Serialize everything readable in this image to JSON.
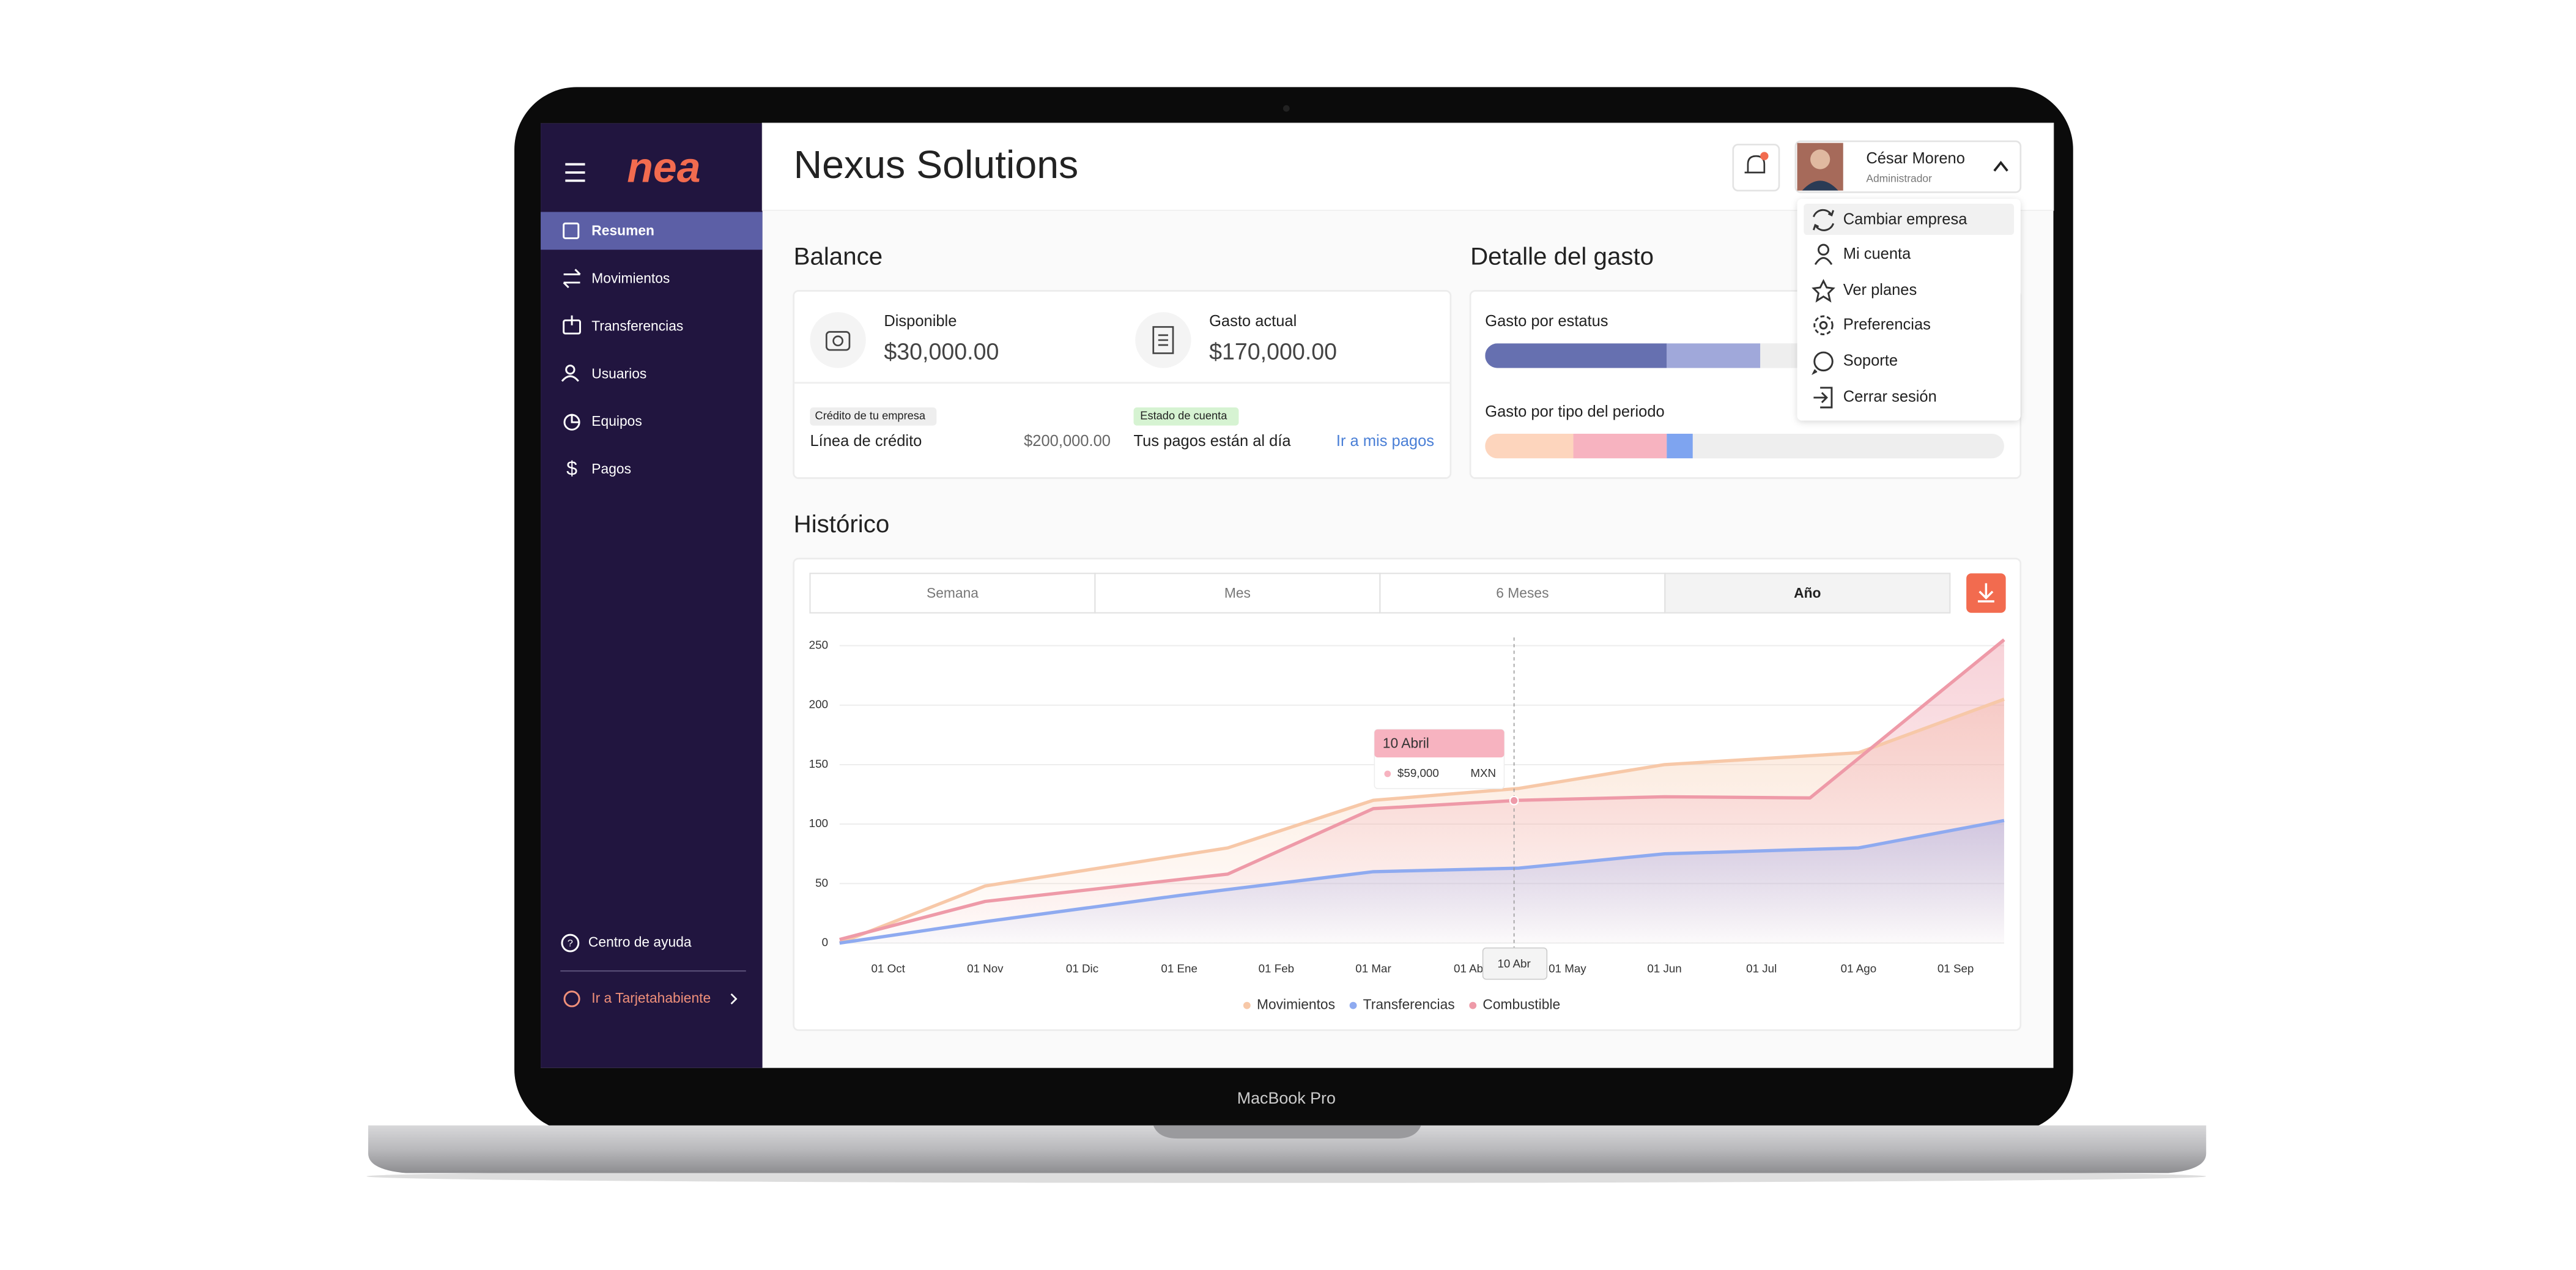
{
  "device": "MacBook Pro",
  "sidebar": {
    "logo": "nea",
    "menu": [
      "Resumen",
      "Movimientos",
      "Transferencias",
      "Usuarios",
      "Equipos",
      "Pagos"
    ],
    "help": "Centro de ayuda",
    "cardholder": "Ir a Tarjetahabiente"
  },
  "header": {
    "title": "Nexus Solutions",
    "user_name": "César Moreno",
    "user_role": "Administrador"
  },
  "user_menu": [
    "Cambiar empresa",
    "Mi cuenta",
    "Ver planes",
    "Preferencias",
    "Soporte",
    "Cerrar sesión"
  ],
  "balance": {
    "title": "Balance",
    "available_label": "Disponible",
    "available": "$30,000.00",
    "spent_label": "Gasto actual",
    "spent": "$170,000.00",
    "credit_badge": "Crédito de tu empresa",
    "credit_label": "Línea de crédito",
    "credit": "$200,000.00",
    "statement_badge": "Estado de cuenta",
    "statement_status": "Tus pagos están al día",
    "statement_link": "Ir a mis pagos"
  },
  "expense_detail": {
    "title": "Detalle del gasto",
    "xlim": [
      0,
      100
    ],
    "by_status": {
      "label": "Gasto por estatus",
      "segments": [
        {
          "color": "#6670b0",
          "value": 35
        },
        {
          "color": "#a0a8da",
          "value": 18
        }
      ]
    },
    "by_type": {
      "label": "Gasto por tipo del periodo",
      "segments": [
        {
          "color": "#fdd5bd",
          "value": 17
        },
        {
          "color": "#f7b3c0",
          "value": 18
        },
        {
          "color": "#7ea4f0",
          "value": 5
        }
      ]
    }
  },
  "history": {
    "title": "Histórico",
    "tabs": [
      "Semana",
      "Mes",
      "6 Meses",
      "Año"
    ],
    "active_tab": 3
  },
  "chart_data": {
    "type": "line",
    "xlim": [
      -0.5,
      11.5
    ],
    "xticks": [
      {
        "value": 0,
        "label": "01 Oct"
      },
      {
        "value": 1,
        "label": "01 Nov"
      },
      {
        "value": 2,
        "label": "01 Dic"
      },
      {
        "value": 3,
        "label": "01 Ene"
      },
      {
        "value": 4,
        "label": "01 Feb"
      },
      {
        "value": 5,
        "label": "01 Mar"
      },
      {
        "value": 6,
        "label": "01 Abr"
      },
      {
        "value": 7,
        "label": "01 May"
      },
      {
        "value": 8,
        "label": "01 Jun"
      },
      {
        "value": 9,
        "label": "01 Jul"
      },
      {
        "value": 10,
        "label": "01 Ago"
      },
      {
        "value": 11,
        "label": "01 Sep"
      }
    ],
    "ylim": [
      0,
      250
    ],
    "yticks": [
      0,
      50,
      100,
      150,
      200,
      250
    ],
    "grid": true,
    "series": [
      {
        "name": "Movimientos",
        "color": "#f7c8a8",
        "x": [
          -0.5,
          1,
          3.5,
          5,
          6.5,
          8,
          10,
          11.5
        ],
        "values": [
          0,
          48,
          80,
          120,
          130,
          150,
          160,
          205
        ]
      },
      {
        "name": "Transferencias",
        "color": "#8eaaf0",
        "x": [
          -0.5,
          1,
          3,
          5,
          6.5,
          8,
          10,
          11.5
        ],
        "values": [
          0,
          18,
          40,
          60,
          63,
          75,
          80,
          103
        ]
      },
      {
        "name": "Combustible",
        "color": "#ee9aa8",
        "x": [
          -0.5,
          1,
          3.5,
          5,
          6.5,
          8,
          9.5,
          11.5
        ],
        "values": [
          3,
          35,
          58,
          113,
          120,
          123,
          122,
          255
        ]
      }
    ],
    "tooltip": {
      "x": 6.45,
      "title": "10 Abril",
      "value_label": "$59,000",
      "unit": "MXN",
      "x_label": "10 Abr"
    }
  }
}
